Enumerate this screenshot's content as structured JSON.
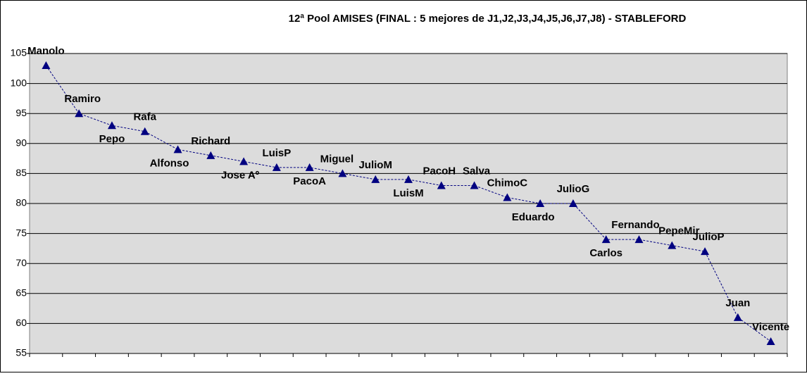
{
  "chart_data": {
    "type": "line",
    "title": "12ª Pool AMISES (FINAL : 5 mejores de J1,J2,J3,J4,J5,J6,J7,J8)  - STABLEFORD",
    "categories": [
      "Manolo",
      "Ramiro",
      "Pepo",
      "Rafa",
      "Alfonso",
      "Richard",
      "Jose Aº",
      "LuisP",
      "PacoA",
      "Miguel",
      "JulioM",
      "LuisM",
      "PacoH",
      "Salva",
      "ChimoC",
      "Eduardo",
      "JulioG",
      "Carlos",
      "Fernando",
      "PepeMir",
      "JulioP",
      "Juan",
      "Vicente"
    ],
    "series": [
      {
        "color": "#000080",
        "values": [
          103,
          95,
          93,
          92,
          89,
          88,
          87,
          86,
          86,
          85,
          84,
          84,
          83,
          83,
          81,
          80,
          80,
          74,
          74,
          73,
          72,
          61,
          57
        ]
      }
    ],
    "ylim": [
      55,
      105
    ],
    "yticks": [
      55,
      60,
      65,
      70,
      75,
      80,
      85,
      90,
      95,
      100,
      105
    ],
    "grid": true
  }
}
